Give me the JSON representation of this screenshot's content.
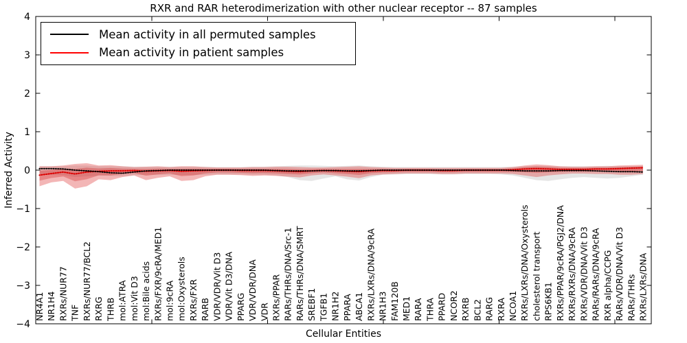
{
  "chart_data": {
    "type": "line",
    "title": "RXR and RAR heterodimerization with other nuclear receptor -- 87 samples",
    "xlabel": "Cellular Entities",
    "ylabel": "Inferred Activity",
    "ylim": [
      -4,
      4
    ],
    "ytick_labels": [
      "4",
      "3",
      "2",
      "1",
      "0",
      "−1",
      "−2",
      "−3",
      "−4"
    ],
    "grid": false,
    "legend": {
      "position": "upper left",
      "entries": [
        {
          "label": "Mean activity in all permuted samples",
          "color": "#000000"
        },
        {
          "label": "Mean activity in patient samples",
          "color": "#ff0000"
        }
      ]
    },
    "categories": [
      "NR4A1",
      "NR1H4",
      "RXRs/NUR77",
      "TNF",
      "RXRs/NUR77/BCL2",
      "RXRG",
      "THRB",
      "mol:ATRA",
      "mol:Vit D3",
      "mol:Bile acids",
      "RXRs/FXR/9cRA/MED1",
      "mol:9cRA",
      "mol:Oxysterols",
      "RXRs/FXR",
      "RARB",
      "VDR/VDR/Vit D3",
      "VDR/Vit D3/DNA",
      "PPARG",
      "VDR/VDR/DNA",
      "VDR",
      "RXRs/PPAR",
      "RARs/THRs/DNA/Src-1",
      "RARs/THRs/DNA/SMRT",
      "SREBF1",
      "TGFB1",
      "NR1H2",
      "PPARA",
      "ABCA1",
      "RXRs/LXRs/DNA/9cRA",
      "NR1H3",
      "FAM120B",
      "MED1",
      "RARA",
      "THRA",
      "PPARD",
      "NCOR2",
      "RXRB",
      "BCL2",
      "RARG",
      "RXRA",
      "NCOA1",
      "RXRs/LXRs/DNA/Oxysterols",
      "cholesterol transport",
      "RPS6KB1",
      "RXRs/PPAR/9cRA/PGJ2/DNA",
      "RXRs/RXRs/DNA/9cRA",
      "RXRs/VDR/DNA/Vit D3",
      "RARs/RARs/DNA/9cRA",
      "RXR alpha/CCPG",
      "RARs/VDR/DNA/Vit D3",
      "RARs/THRs",
      "RXRs/LXRs/DNA"
    ],
    "series": [
      {
        "name": "Mean activity in all permuted samples",
        "color": "#000000",
        "values": [
          0.04,
          0.04,
          0.03,
          0.0,
          -0.02,
          -0.04,
          -0.07,
          -0.08,
          -0.05,
          -0.02,
          -0.01,
          0,
          0,
          0,
          0,
          0,
          0,
          0,
          0,
          0,
          -0.01,
          -0.02,
          -0.02,
          -0.02,
          -0.01,
          -0.01,
          -0.02,
          -0.02,
          -0.01,
          0,
          0,
          0,
          0,
          0,
          0,
          0,
          0,
          0,
          0,
          0,
          -0.01,
          -0.02,
          -0.02,
          -0.02,
          -0.01,
          -0.01,
          -0.01,
          -0.02,
          -0.03,
          -0.04,
          -0.04,
          -0.05
        ],
        "band": {
          "color": "#a8a8a8",
          "lower": [
            -0.12,
            -0.12,
            -0.13,
            -0.18,
            -0.16,
            -0.14,
            -0.15,
            -0.16,
            -0.13,
            -0.12,
            -0.12,
            -0.12,
            -0.13,
            -0.13,
            -0.12,
            -0.11,
            -0.11,
            -0.11,
            -0.12,
            -0.12,
            -0.14,
            -0.18,
            -0.26,
            -0.28,
            -0.22,
            -0.16,
            -0.24,
            -0.27,
            -0.18,
            -0.12,
            -0.11,
            -0.1,
            -0.1,
            -0.1,
            -0.11,
            -0.11,
            -0.1,
            -0.1,
            -0.1,
            -0.11,
            -0.14,
            -0.2,
            -0.26,
            -0.28,
            -0.24,
            -0.2,
            -0.18,
            -0.2,
            -0.22,
            -0.2,
            -0.16,
            -0.12
          ],
          "upper": [
            0.1,
            0.1,
            0.1,
            0.12,
            0.12,
            0.1,
            0.1,
            0.1,
            0.09,
            0.09,
            0.09,
            0.09,
            0.09,
            0.09,
            0.09,
            0.08,
            0.08,
            0.08,
            0.09,
            0.09,
            0.1,
            0.11,
            0.12,
            0.12,
            0.11,
            0.1,
            0.11,
            0.12,
            0.1,
            0.09,
            0.08,
            0.08,
            0.08,
            0.08,
            0.08,
            0.08,
            0.08,
            0.08,
            0.08,
            0.08,
            0.09,
            0.1,
            0.11,
            0.11,
            0.1,
            0.1,
            0.1,
            0.1,
            0.11,
            0.1,
            0.1,
            0.1
          ]
        }
      },
      {
        "name": "Mean activity in patient samples",
        "color": "#ff0000",
        "values": [
          -0.13,
          -0.09,
          -0.05,
          -0.1,
          -0.05,
          -0.03,
          -0.02,
          -0.02,
          -0.01,
          -0.03,
          -0.02,
          -0.01,
          -0.03,
          -0.02,
          -0.01,
          0.0,
          0.0,
          -0.01,
          -0.01,
          -0.01,
          -0.02,
          -0.03,
          -0.04,
          -0.02,
          -0.01,
          -0.02,
          -0.03,
          -0.04,
          -0.02,
          -0.01,
          -0.01,
          0.0,
          0.0,
          0.0,
          -0.01,
          -0.01,
          0.0,
          0.0,
          0.0,
          0.0,
          0.01,
          0.03,
          0.04,
          0.03,
          0.02,
          0.02,
          0.02,
          0.03,
          0.03,
          0.04,
          0.05,
          0.06
        ],
        "band": {
          "color": "#e04848",
          "lower": [
            -0.42,
            -0.32,
            -0.28,
            -0.48,
            -0.42,
            -0.24,
            -0.26,
            -0.18,
            -0.14,
            -0.26,
            -0.2,
            -0.16,
            -0.28,
            -0.26,
            -0.16,
            -0.12,
            -0.12,
            -0.13,
            -0.15,
            -0.14,
            -0.15,
            -0.17,
            -0.19,
            -0.14,
            -0.11,
            -0.14,
            -0.17,
            -0.21,
            -0.14,
            -0.11,
            -0.1,
            -0.09,
            -0.09,
            -0.09,
            -0.1,
            -0.1,
            -0.09,
            -0.09,
            -0.09,
            -0.09,
            -0.1,
            -0.14,
            -0.18,
            -0.14,
            -0.11,
            -0.09,
            -0.09,
            -0.1,
            -0.1,
            -0.12,
            -0.12,
            -0.1
          ],
          "upper": [
            0.1,
            0.1,
            0.12,
            0.16,
            0.18,
            0.12,
            0.13,
            0.1,
            0.08,
            0.09,
            0.1,
            0.08,
            0.1,
            0.1,
            0.08,
            0.07,
            0.07,
            0.07,
            0.08,
            0.08,
            0.09,
            0.09,
            0.08,
            0.07,
            0.07,
            0.08,
            0.09,
            0.1,
            0.08,
            0.07,
            0.06,
            0.06,
            0.06,
            0.06,
            0.06,
            0.06,
            0.06,
            0.06,
            0.06,
            0.06,
            0.08,
            0.12,
            0.15,
            0.13,
            0.1,
            0.09,
            0.09,
            0.1,
            0.1,
            0.12,
            0.13,
            0.14
          ]
        }
      }
    ]
  }
}
